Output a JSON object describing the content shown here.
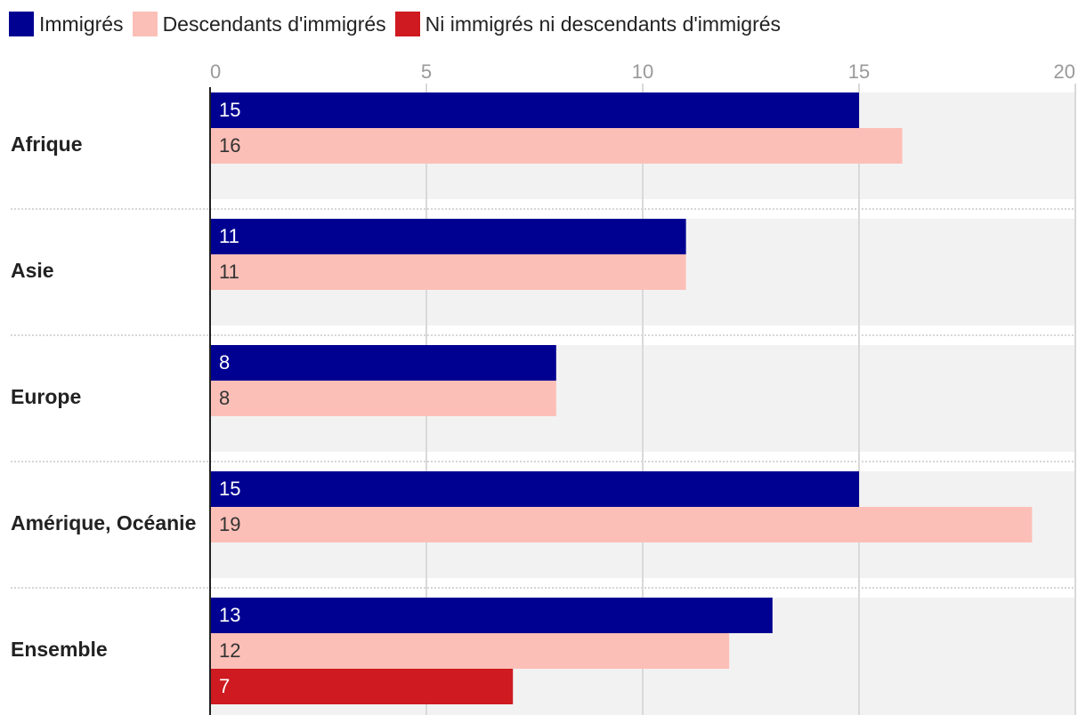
{
  "chart_data": {
    "type": "bar",
    "orientation": "horizontal",
    "categories": [
      "Afrique",
      "Asie",
      "Europe",
      "Amérique, Océanie",
      "Ensemble"
    ],
    "series": [
      {
        "name": "Immigrés",
        "color": "#000091",
        "values": [
          15,
          11,
          8,
          15,
          13
        ]
      },
      {
        "name": "Descendants d'immigrés",
        "color": "#fcbfb7",
        "values": [
          16,
          11,
          8,
          19,
          12
        ]
      },
      {
        "name": "Ni immigrés ni descendants d'immigrés",
        "color": "#ce1a20",
        "values": [
          null,
          null,
          null,
          null,
          7
        ]
      }
    ],
    "xlim": [
      0,
      20
    ],
    "ticks": [
      "0",
      "5",
      "10",
      "15",
      "20"
    ],
    "title": "",
    "xlabel": "",
    "ylabel": "",
    "grid": true,
    "legend_position": "top-left",
    "value_labels": true
  }
}
